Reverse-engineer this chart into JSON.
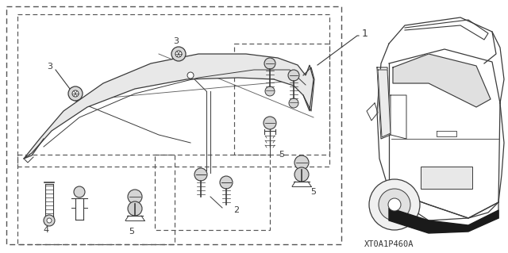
{
  "bg_color": "#ffffff",
  "line_color": "#3a3a3a",
  "part_code": "XT0A1P460A",
  "figsize": [
    6.4,
    3.19
  ],
  "dpi": 100
}
